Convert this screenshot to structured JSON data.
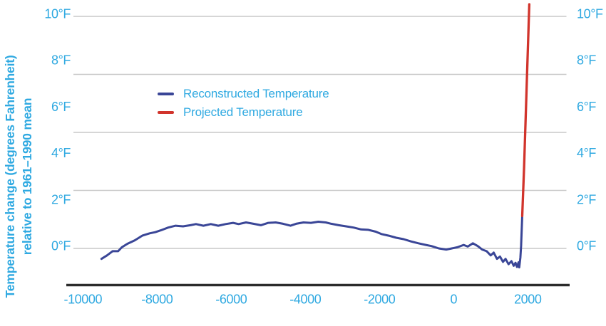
{
  "chart_data": {
    "type": "line",
    "title": "",
    "ylabel_line1": "Temperature change (degrees Fahrenheit)",
    "ylabel_line2": "relative to 1961–1990 mean",
    "xlabel": "",
    "xlim": [
      -10450,
      2300
    ],
    "ylim": [
      -1.6,
      10.6
    ],
    "grid": "horizontal-only",
    "gridline_values": [
      0,
      2.5,
      5,
      7.5,
      10
    ],
    "x_ticks": [
      -10000,
      -8000,
      -6000,
      -4000,
      -2000,
      0,
      2000
    ],
    "x_tick_labels": [
      "-10000",
      "-8000",
      "-6000",
      "-4000",
      "-2000",
      "0",
      "2000"
    ],
    "y_tick_values": [
      0,
      2,
      4,
      6,
      8,
      10
    ],
    "y_tick_labels": [
      "0°F",
      "2°F",
      "4°F",
      "6°F",
      "8°F",
      "10°F"
    ],
    "y_labels_on_both_sides": true,
    "legend_position": "upper-left-inside",
    "legend": [
      {
        "label": "Reconstructed Temperature",
        "color": "#3A4697"
      },
      {
        "label": "Projected Temperature",
        "color": "#D1342C"
      }
    ],
    "series": [
      {
        "name": "Reconstructed Temperature",
        "color": "#3A4697",
        "width": 3,
        "points": [
          [
            -9500,
            -0.45
          ],
          [
            -9350,
            -0.3
          ],
          [
            -9200,
            -0.12
          ],
          [
            -9050,
            -0.12
          ],
          [
            -8950,
            0.05
          ],
          [
            -8800,
            0.2
          ],
          [
            -8600,
            0.35
          ],
          [
            -8400,
            0.55
          ],
          [
            -8200,
            0.65
          ],
          [
            -8050,
            0.7
          ],
          [
            -7900,
            0.78
          ],
          [
            -7700,
            0.9
          ],
          [
            -7500,
            0.98
          ],
          [
            -7300,
            0.95
          ],
          [
            -7100,
            1.0
          ],
          [
            -6950,
            1.05
          ],
          [
            -6750,
            0.98
          ],
          [
            -6550,
            1.05
          ],
          [
            -6350,
            0.98
          ],
          [
            -6150,
            1.05
          ],
          [
            -5950,
            1.1
          ],
          [
            -5800,
            1.05
          ],
          [
            -5600,
            1.12
          ],
          [
            -5400,
            1.06
          ],
          [
            -5200,
            1.0
          ],
          [
            -5000,
            1.1
          ],
          [
            -4800,
            1.12
          ],
          [
            -4600,
            1.06
          ],
          [
            -4400,
            0.98
          ],
          [
            -4250,
            1.06
          ],
          [
            -4050,
            1.12
          ],
          [
            -3850,
            1.1
          ],
          [
            -3650,
            1.15
          ],
          [
            -3450,
            1.12
          ],
          [
            -3300,
            1.06
          ],
          [
            -3100,
            1.0
          ],
          [
            -2900,
            0.95
          ],
          [
            -2700,
            0.9
          ],
          [
            -2500,
            0.82
          ],
          [
            -2300,
            0.8
          ],
          [
            -2100,
            0.72
          ],
          [
            -1950,
            0.62
          ],
          [
            -1750,
            0.55
          ],
          [
            -1550,
            0.46
          ],
          [
            -1350,
            0.4
          ],
          [
            -1150,
            0.3
          ],
          [
            -950,
            0.22
          ],
          [
            -750,
            0.15
          ],
          [
            -600,
            0.1
          ],
          [
            -400,
            0.0
          ],
          [
            -200,
            -0.05
          ],
          [
            -50,
            0.0
          ],
          [
            100,
            0.05
          ],
          [
            270,
            0.15
          ],
          [
            380,
            0.08
          ],
          [
            520,
            0.22
          ],
          [
            650,
            0.1
          ],
          [
            770,
            -0.05
          ],
          [
            890,
            -0.12
          ],
          [
            1000,
            -0.3
          ],
          [
            1080,
            -0.18
          ],
          [
            1170,
            -0.45
          ],
          [
            1250,
            -0.35
          ],
          [
            1330,
            -0.58
          ],
          [
            1400,
            -0.45
          ],
          [
            1480,
            -0.68
          ],
          [
            1560,
            -0.55
          ],
          [
            1620,
            -0.75
          ],
          [
            1670,
            -0.62
          ],
          [
            1710,
            -0.8
          ],
          [
            1750,
            -0.6
          ],
          [
            1770,
            -0.82
          ],
          [
            1800,
            -0.4
          ],
          [
            1820,
            0.1
          ],
          [
            1850,
            1.4
          ]
        ]
      },
      {
        "name": "Projected Temperature",
        "color": "#D1342C",
        "width": 3.3,
        "points": [
          [
            1850,
            1.4
          ],
          [
            1900,
            3.5
          ],
          [
            1950,
            6.0
          ],
          [
            2000,
            8.5
          ],
          [
            2040,
            10.52
          ]
        ]
      }
    ],
    "colors": {
      "axis_label": "#2FA9E1",
      "gridline": "#C8C8C8",
      "axis_line": "#2B2B2B"
    }
  }
}
